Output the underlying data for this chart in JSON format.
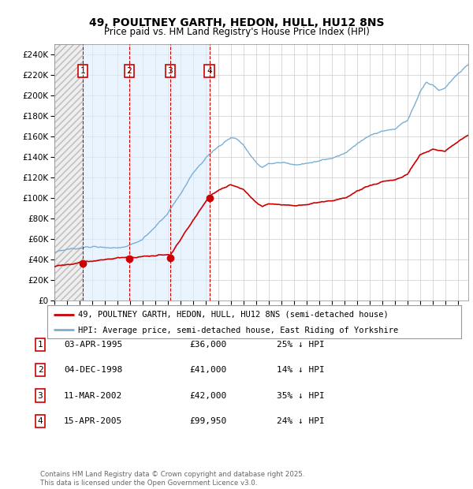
{
  "title1": "49, POULTNEY GARTH, HEDON, HULL, HU12 8NS",
  "title2": "Price paid vs. HM Land Registry's House Price Index (HPI)",
  "ylim": [
    0,
    250000
  ],
  "yticks": [
    0,
    20000,
    40000,
    60000,
    80000,
    100000,
    120000,
    140000,
    160000,
    180000,
    200000,
    220000,
    240000
  ],
  "xlim_start": 1993.0,
  "xlim_end": 2025.83,
  "sale_dates": [
    1995.25,
    1998.92,
    2002.19,
    2005.29
  ],
  "sale_prices": [
    36000,
    41000,
    42000,
    99950
  ],
  "sale_labels": [
    "1",
    "2",
    "3",
    "4"
  ],
  "vline_color": "#cc0000",
  "sale_marker_color": "#cc0000",
  "hpi_line_color": "#7aafd4",
  "price_line_color": "#cc0000",
  "shading_color": "#ddeeff",
  "legend_label_red": "49, POULTNEY GARTH, HEDON, HULL, HU12 8NS (semi-detached house)",
  "legend_label_blue": "HPI: Average price, semi-detached house, East Riding of Yorkshire",
  "table_entries": [
    {
      "num": "1",
      "date": "03-APR-1995",
      "price": "£36,000",
      "pct": "25% ↓ HPI"
    },
    {
      "num": "2",
      "date": "04-DEC-1998",
      "price": "£41,000",
      "pct": "14% ↓ HPI"
    },
    {
      "num": "3",
      "date": "11-MAR-2002",
      "price": "£42,000",
      "pct": "35% ↓ HPI"
    },
    {
      "num": "4",
      "date": "15-APR-2005",
      "price": "£99,950",
      "pct": "24% ↓ HPI"
    }
  ],
  "footnote": "Contains HM Land Registry data © Crown copyright and database right 2025.\nThis data is licensed under the Open Government Licence v3.0.",
  "bg_color": "#ffffff",
  "grid_color": "#cccccc"
}
